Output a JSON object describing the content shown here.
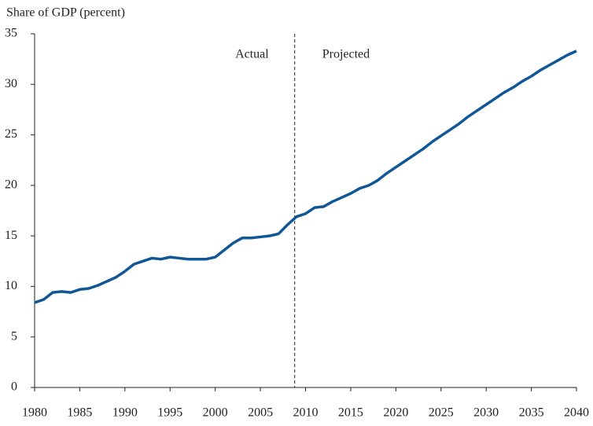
{
  "chart_data": {
    "type": "line",
    "y_axis_label": "Share of GDP (percent)",
    "annotations": [
      "Actual",
      "Projected"
    ],
    "split_x": 2008.8,
    "x": [
      1980,
      1981,
      1982,
      1983,
      1984,
      1985,
      1986,
      1987,
      1988,
      1989,
      1990,
      1991,
      1992,
      1993,
      1994,
      1995,
      1996,
      1997,
      1998,
      1999,
      2000,
      2001,
      2002,
      2003,
      2004,
      2005,
      2006,
      2007,
      2008,
      2009,
      2010,
      2011,
      2012,
      2013,
      2014,
      2015,
      2016,
      2017,
      2018,
      2019,
      2020,
      2021,
      2022,
      2023,
      2024,
      2025,
      2026,
      2027,
      2028,
      2029,
      2030,
      2031,
      2032,
      2033,
      2034,
      2035,
      2036,
      2037,
      2038,
      2039,
      2040
    ],
    "series": [
      {
        "color": "#0f5796",
        "values": [
          8.4,
          8.7,
          9.4,
          9.5,
          9.4,
          9.7,
          9.8,
          10.1,
          10.5,
          10.9,
          11.5,
          12.2,
          12.5,
          12.8,
          12.7,
          12.9,
          12.8,
          12.7,
          12.7,
          12.7,
          12.9,
          13.6,
          14.3,
          14.8,
          14.8,
          14.9,
          15.0,
          15.2,
          16.1,
          16.9,
          17.2,
          17.8,
          17.9,
          18.4,
          18.8,
          19.2,
          19.7,
          20.0,
          20.5,
          21.2,
          21.8,
          22.4,
          23.0,
          23.6,
          24.3,
          24.9,
          25.5,
          26.1,
          26.8,
          27.4,
          28.0,
          28.6,
          29.2,
          29.7,
          30.3,
          30.8,
          31.4,
          31.9,
          32.4,
          32.9,
          33.3
        ]
      }
    ],
    "xlim": [
      1980,
      2040
    ],
    "xticks": [
      1980,
      1985,
      1990,
      1995,
      2000,
      2005,
      2010,
      2015,
      2020,
      2025,
      2030,
      2035,
      2040
    ],
    "ylim": [
      0,
      35
    ],
    "yticks": [
      0,
      5,
      10,
      15,
      20,
      25,
      30,
      35
    ]
  }
}
